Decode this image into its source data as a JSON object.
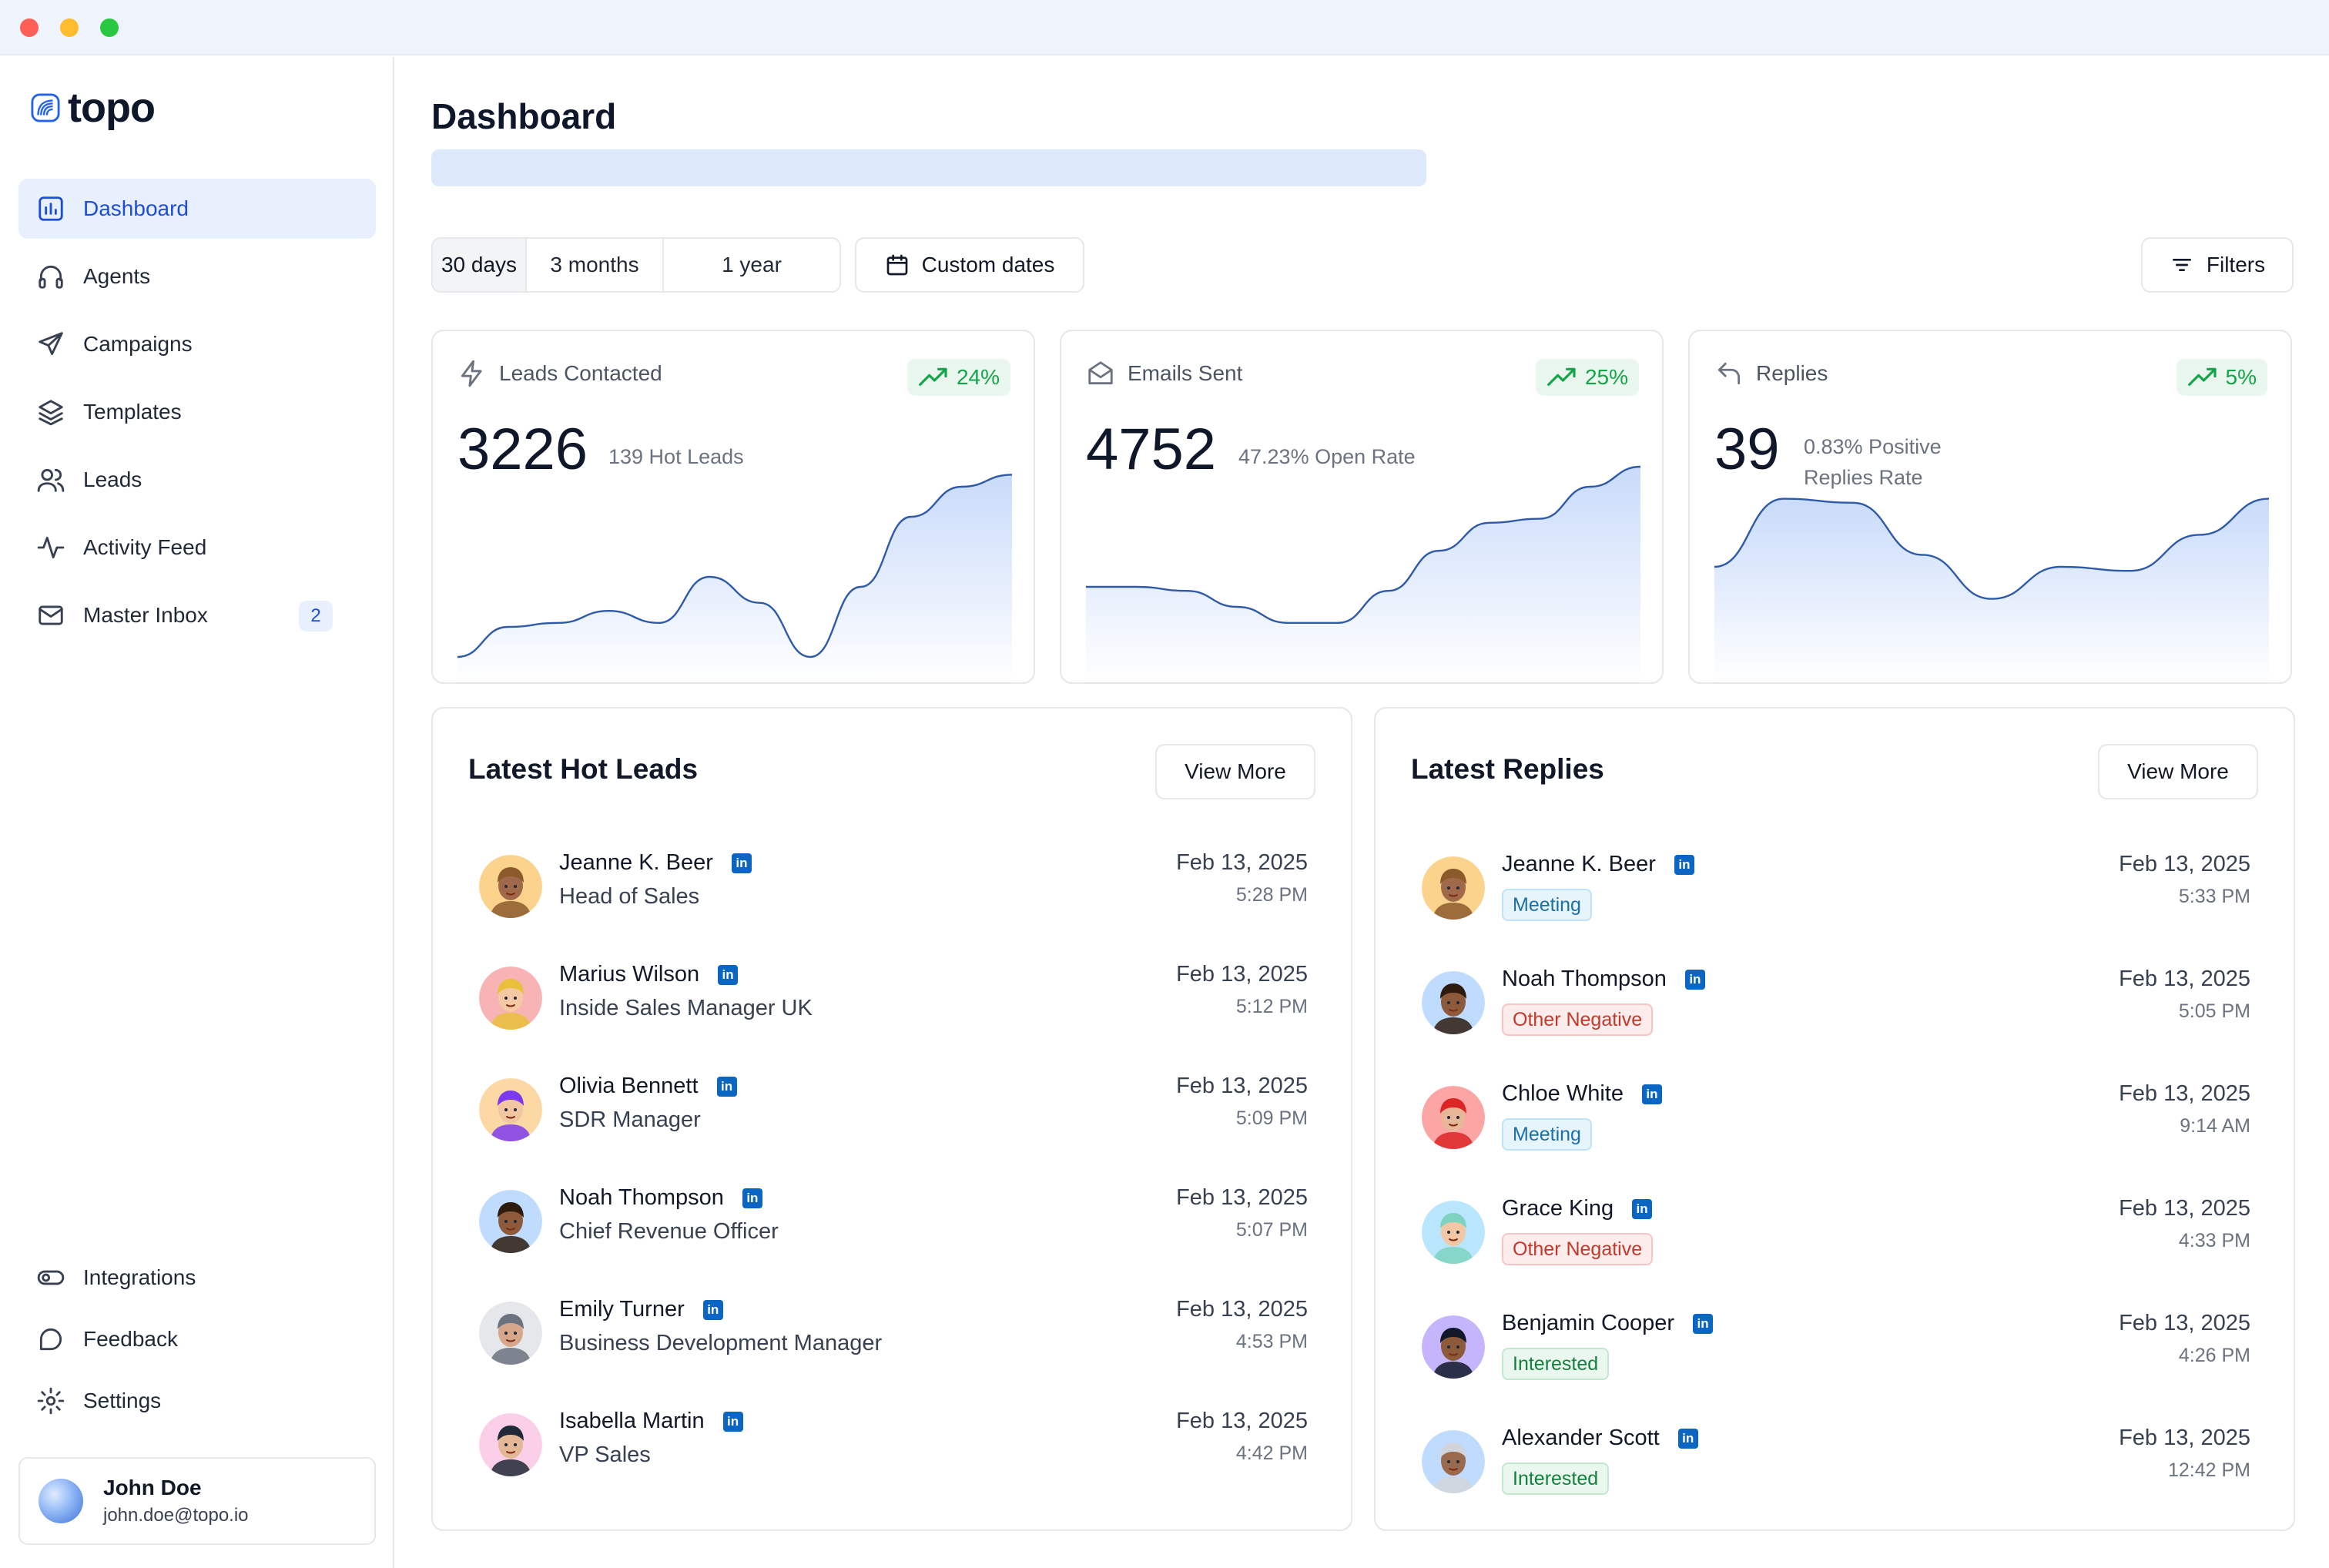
{
  "app": {
    "name": "topo"
  },
  "sidebar": {
    "nav": [
      {
        "label": "Dashboard",
        "icon": "bar-chart-icon",
        "active": true
      },
      {
        "label": "Agents",
        "icon": "headphones-icon"
      },
      {
        "label": "Campaigns",
        "icon": "send-icon"
      },
      {
        "label": "Templates",
        "icon": "layers-icon"
      },
      {
        "label": "Leads",
        "icon": "users-icon"
      },
      {
        "label": "Activity Feed",
        "icon": "activity-icon"
      },
      {
        "label": "Master Inbox",
        "icon": "mail-icon",
        "badge": "2"
      }
    ],
    "bottom_nav": [
      {
        "label": "Integrations",
        "icon": "toggle-icon"
      },
      {
        "label": "Feedback",
        "icon": "message-icon"
      },
      {
        "label": "Settings",
        "icon": "gear-icon"
      }
    ],
    "user": {
      "name": "John Doe",
      "email": "john.doe@topo.io"
    }
  },
  "header": {
    "title": "Dashboard"
  },
  "toolbar": {
    "ranges": [
      "30 days",
      "3 months",
      "1 year"
    ],
    "active_range": "30 days",
    "custom_dates_label": "Custom dates",
    "filters_label": "Filters"
  },
  "stats": [
    {
      "label": "Leads Contacted",
      "icon": "lightning-icon",
      "value": "3226",
      "sub": "139 Hot Leads",
      "trend": "24%",
      "curve": [
        0.95,
        0.8,
        0.78,
        0.72,
        0.78,
        0.55,
        0.68,
        0.95,
        0.6,
        0.25,
        0.1,
        0.04
      ]
    },
    {
      "label": "Emails Sent",
      "icon": "mail-open-icon",
      "value": "4752",
      "sub": "47.23% Open Rate",
      "trend": "25%",
      "curve": [
        0.6,
        0.6,
        0.62,
        0.7,
        0.78,
        0.78,
        0.62,
        0.42,
        0.28,
        0.26,
        0.1,
        0.0
      ]
    },
    {
      "label": "Replies",
      "icon": "reply-icon",
      "value": "39",
      "sub_line1": "0.83% Positive",
      "sub_line2": "Replies Rate",
      "trend": "5%",
      "curve": [
        0.5,
        0.16,
        0.18,
        0.44,
        0.66,
        0.5,
        0.52,
        0.34,
        0.16
      ]
    }
  ],
  "hot_leads": {
    "title": "Latest Hot Leads",
    "view_more": "View More",
    "items": [
      {
        "name": "Jeanne K. Beer",
        "role": "Head of Sales",
        "date": "Feb 13, 2025",
        "time": "5:28 PM",
        "avatar_bg": "#fbd38d",
        "skin": "#a0694a",
        "hair": "#8b5a2b"
      },
      {
        "name": "Marius Wilson",
        "role": "Inside Sales Manager UK",
        "date": "Feb 13, 2025",
        "time": "5:12 PM",
        "avatar_bg": "#f8b4b4",
        "skin": "#f5c9a4",
        "hair": "#e9c03b"
      },
      {
        "name": "Olivia Bennett",
        "role": "SDR Manager",
        "date": "Feb 13, 2025",
        "time": "5:09 PM",
        "avatar_bg": "#fcd9a4",
        "skin": "#f2c6a0",
        "hair": "#7c3aed"
      },
      {
        "name": "Noah Thompson",
        "role": "Chief Revenue Officer",
        "date": "Feb 13, 2025",
        "time": "5:07 PM",
        "avatar_bg": "#bfdbfe",
        "skin": "#8d5a3b",
        "hair": "#2d1b0e"
      },
      {
        "name": "Emily Turner",
        "role": "Business Development Manager",
        "date": "Feb 13, 2025",
        "time": "4:53 PM",
        "avatar_bg": "#e5e7eb",
        "skin": "#d6a78a",
        "hair": "#6b7280"
      },
      {
        "name": "Isabella Martin",
        "role": "VP Sales",
        "date": "Feb 13, 2025",
        "time": "4:42 PM",
        "avatar_bg": "#fbcfe8",
        "skin": "#e4b896",
        "hair": "#1f2937"
      }
    ]
  },
  "latest_replies": {
    "title": "Latest Replies",
    "view_more": "View More",
    "items": [
      {
        "name": "Jeanne K. Beer",
        "tag": "Meeting",
        "tag_type": "meeting",
        "date": "Feb 13, 2025",
        "time": "5:33 PM",
        "avatar_bg": "#fbd38d",
        "skin": "#a0694a",
        "hair": "#8b5a2b"
      },
      {
        "name": "Noah Thompson",
        "tag": "Other Negative",
        "tag_type": "negative",
        "date": "Feb 13, 2025",
        "time": "5:05 PM",
        "avatar_bg": "#bfdbfe",
        "skin": "#8d5a3b",
        "hair": "#2d1b0e"
      },
      {
        "name": "Chloe White",
        "tag": "Meeting",
        "tag_type": "meeting",
        "date": "Feb 13, 2025",
        "time": "9:14 AM",
        "avatar_bg": "#fca5a5",
        "skin": "#e8b79a",
        "hair": "#dc2626"
      },
      {
        "name": "Grace King",
        "tag": "Other Negative",
        "tag_type": "negative",
        "date": "Feb 13, 2025",
        "time": "4:33 PM",
        "avatar_bg": "#bae6fd",
        "skin": "#f1c7a5",
        "hair": "#7dd3c0"
      },
      {
        "name": "Benjamin Cooper",
        "tag": "Interested",
        "tag_type": "interested",
        "date": "Feb 13, 2025",
        "time": "4:26 PM",
        "avatar_bg": "#c4b5fd",
        "skin": "#8d5a3b",
        "hair": "#111827"
      },
      {
        "name": "Alexander Scott",
        "tag": "Interested",
        "tag_type": "interested",
        "date": "Feb 13, 2025",
        "time": "12:42 PM",
        "avatar_bg": "#bfdbfe",
        "skin": "#9a6a4f",
        "hair": "#d1d5db"
      }
    ]
  },
  "colors": {
    "accent": "#1d4ed8",
    "trend_up": "#16a34a",
    "linkedin": "#0a66c2"
  }
}
